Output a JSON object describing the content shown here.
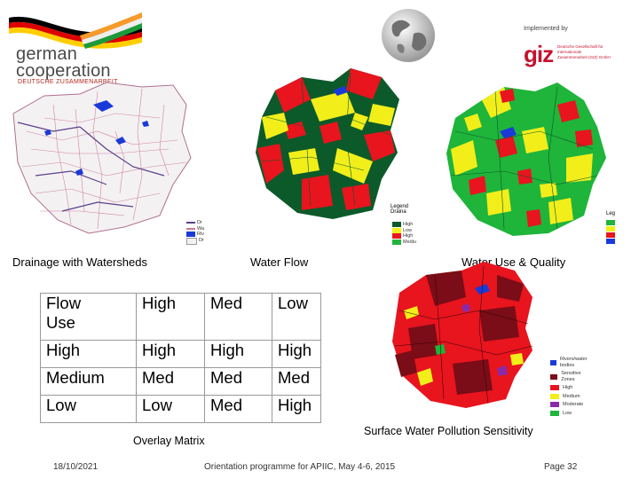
{
  "header": {
    "org_line1": "german",
    "org_line2": "cooperation",
    "org_sub": "DEUTSCHE ZUSAMMENARBEIT",
    "implemented_by": "Implemented by",
    "giz_logo": "giz",
    "giz_sub": "Deutsche Gesellschaft für Internationale Zusammenarbeit (GIZ) GmbH"
  },
  "maps": {
    "drainage": {
      "caption": "Drainage with Watersheds",
      "legend": [
        "Dr",
        "Wa",
        "Riv",
        "Dr"
      ]
    },
    "water_flow": {
      "caption": "Water Flow",
      "legend_title": "Legend",
      "legend_sub": "Draina",
      "legend_items": [
        "High",
        "Low",
        "High",
        "Mediu"
      ]
    },
    "water_use": {
      "caption": "Water Use & Quality",
      "legend_title": "Leg"
    },
    "pollution": {
      "caption": "Surface Water Pollution Sensitivity",
      "legend_items": [
        "Rivers/water bodies",
        "Sensitive Zones",
        "High",
        "Medium",
        "Moderate",
        "Low"
      ]
    }
  },
  "matrix": {
    "header": [
      "Flow\nUse",
      "High",
      "Med",
      "Low"
    ],
    "rows": [
      [
        "High",
        "High",
        "High",
        "High"
      ],
      [
        "Medium",
        "Med",
        "Med",
        "Med"
      ],
      [
        "Low",
        "Low",
        "Med",
        "High"
      ]
    ],
    "caption": "Overlay Matrix"
  },
  "footer": {
    "date": "18/10/2021",
    "event": "Orientation programme for APIIC, May 4-6, 2015",
    "page": "Page 32"
  },
  "colors": {
    "flag_black": "#000000",
    "flag_red": "#dd0000",
    "flag_gold": "#ffce00",
    "giz_red": "#c4122f",
    "map_red": "#e8141e",
    "map_yellow": "#f2ee1a",
    "map_green": "#1fb43a",
    "map_darkgreen": "#0c5a2a",
    "map_blue": "#1a3ad8",
    "map_maroon": "#7a0d17"
  }
}
